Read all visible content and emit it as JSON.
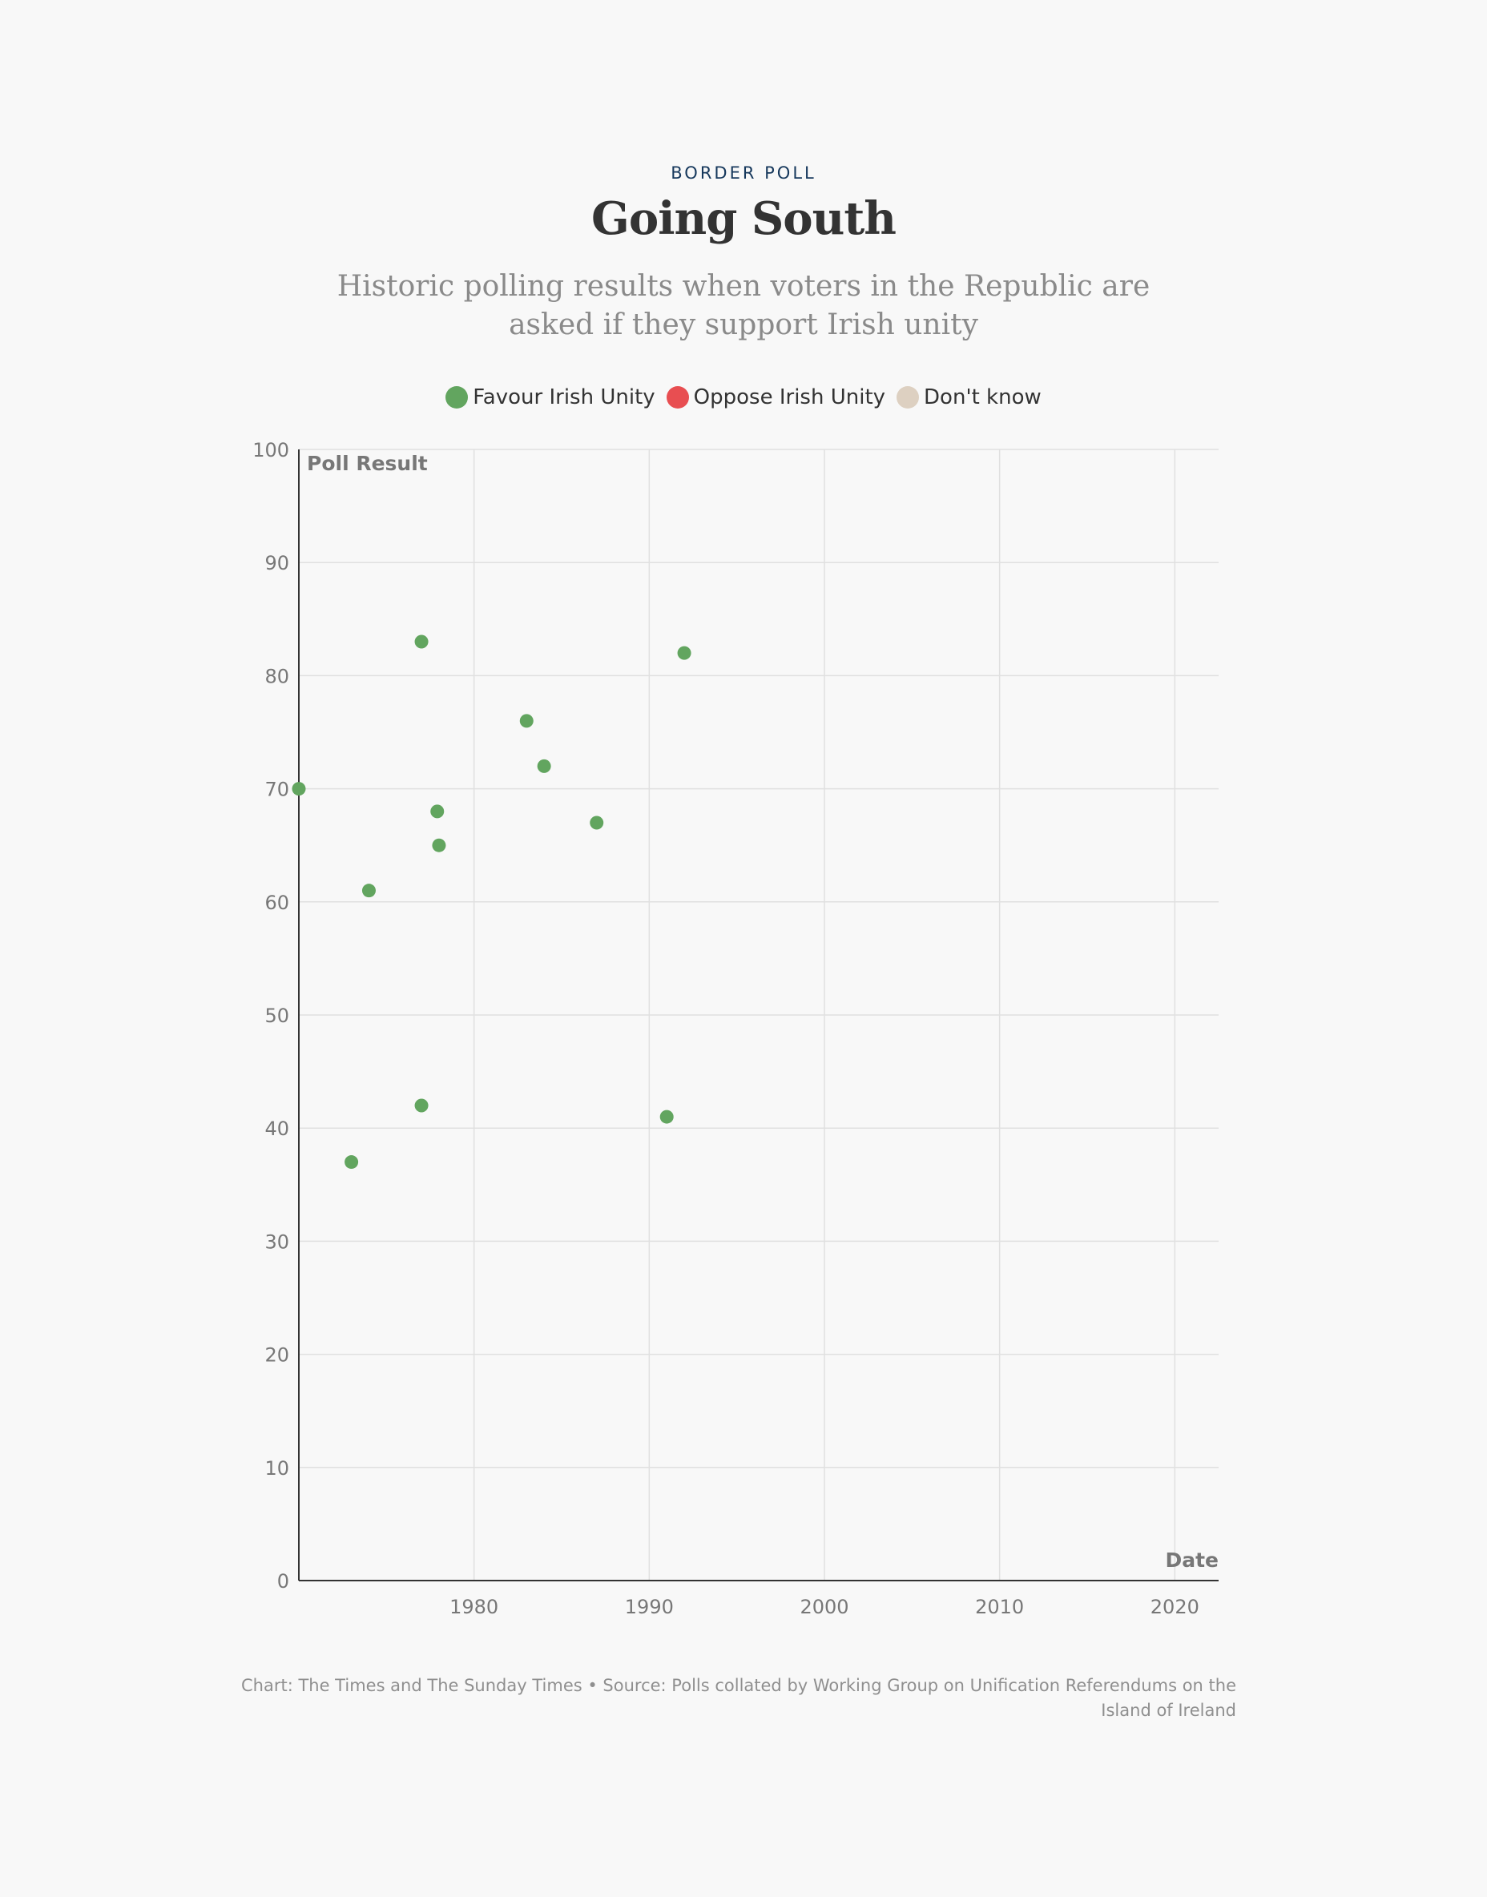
{
  "header": {
    "kicker": "BORDER POLL",
    "title": "Going South",
    "subtitle": "Historic polling results when voters in the Republic are asked if they support Irish unity"
  },
  "legend": {
    "items": [
      {
        "label": "Favour Irish Unity",
        "color": "#62a55f"
      },
      {
        "label": "Oppose Irish Unity",
        "color": "#e84e51"
      },
      {
        "label": "Don't know",
        "color": "#ddd0c1"
      }
    ]
  },
  "chart_data": {
    "type": "scatter",
    "xlabel": "Date",
    "ylabel": "Poll Result",
    "xlim": [
      1970,
      2022.5
    ],
    "ylim": [
      0,
      100
    ],
    "x_ticks": [
      1980,
      1990,
      2000,
      2010,
      2020
    ],
    "y_ticks": [
      0,
      10,
      20,
      30,
      40,
      50,
      60,
      70,
      80,
      90,
      100
    ],
    "grid": true,
    "legend_position": "top",
    "series": [
      {
        "name": "Favour Irish Unity",
        "color": "#62a55f",
        "points": [
          {
            "x": 1970.0,
            "y": 70
          },
          {
            "x": 1973.0,
            "y": 37
          },
          {
            "x": 1974.0,
            "y": 61
          },
          {
            "x": 1977.0,
            "y": 83
          },
          {
            "x": 1977.0,
            "y": 42
          },
          {
            "x": 1977.9,
            "y": 68
          },
          {
            "x": 1978.0,
            "y": 65
          },
          {
            "x": 1983.0,
            "y": 76
          },
          {
            "x": 1984.0,
            "y": 72
          },
          {
            "x": 1987.0,
            "y": 67
          },
          {
            "x": 1991.0,
            "y": 41
          },
          {
            "x": 1992.0,
            "y": 82
          }
        ]
      },
      {
        "name": "Oppose Irish Unity",
        "color": "#e84e51",
        "points": []
      },
      {
        "name": "Don't know",
        "color": "#ddd0c1",
        "points": []
      }
    ]
  },
  "footer": {
    "credit": "Chart: The Times and The Sunday Times • Source: Polls collated by Working Group on Unification Referendums on the Island of Ireland"
  }
}
